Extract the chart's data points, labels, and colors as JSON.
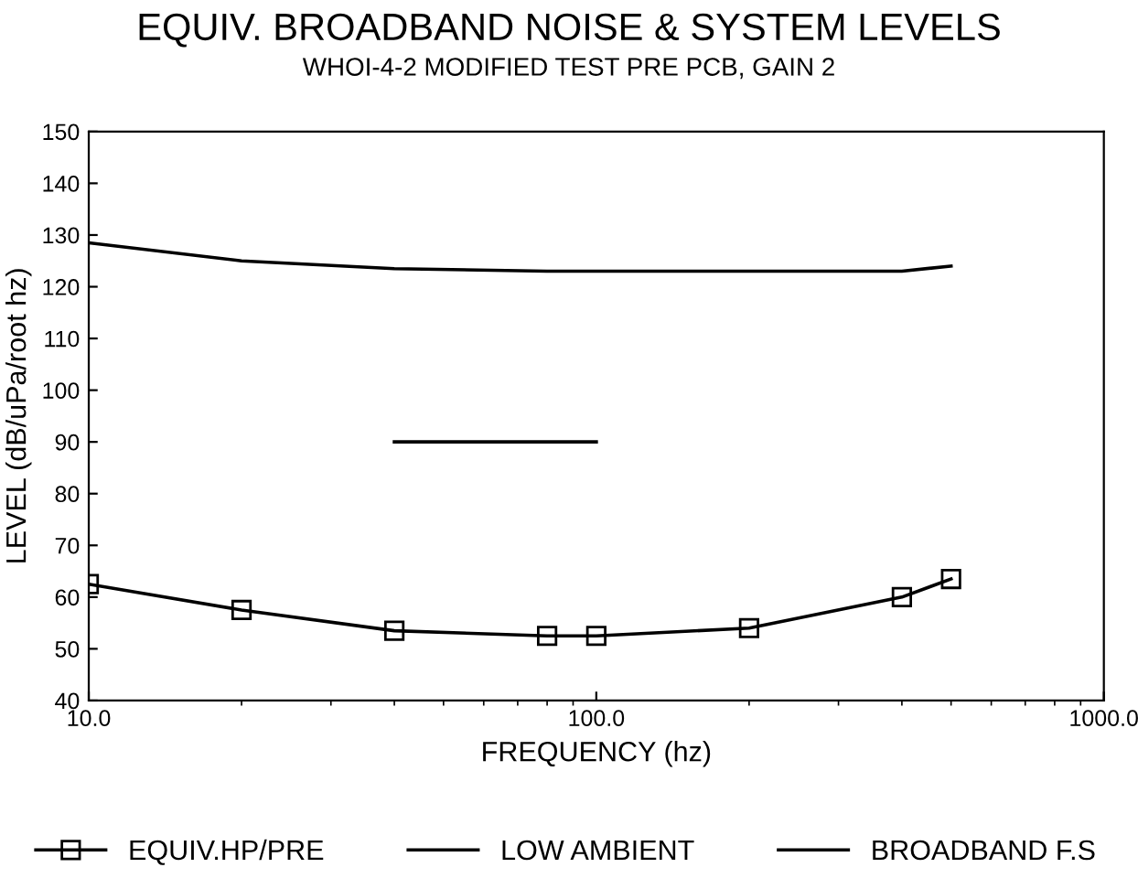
{
  "chart_data": {
    "type": "line",
    "title": "EQUIV. BROADBAND NOISE & SYSTEM LEVELS",
    "subtitle": "WHOI-4-2 MODIFIED TEST PRE PCB, GAIN 2",
    "xlabel": "FREQUENCY (hz)",
    "ylabel": "LEVEL (dB/uPa/root hz)",
    "log": "x",
    "xlim": [
      10,
      1000
    ],
    "xticks": [
      {
        "value": 10,
        "label": "10.0"
      },
      {
        "value": 100,
        "label": "100.0"
      },
      {
        "value": 1000,
        "label": "1000.0"
      }
    ],
    "ylim": [
      40,
      150
    ],
    "yticks": [
      40,
      50,
      60,
      70,
      80,
      90,
      100,
      110,
      120,
      130,
      140,
      150
    ],
    "grid": false,
    "legend": "bottom",
    "series": [
      {
        "name": "EQUIV.HP/PRE",
        "color": "#000000",
        "marker": "square",
        "x": [
          10,
          20,
          40,
          80,
          100,
          200,
          400,
          500
        ],
        "values": [
          62.5,
          57.5,
          53.5,
          52.5,
          52.5,
          54,
          60,
          63.5
        ]
      },
      {
        "name": "LOW AMBIENT",
        "color": "#000000",
        "marker": "none",
        "x": [
          40,
          100
        ],
        "values": [
          90,
          90
        ]
      },
      {
        "name": "BROADBAND F.S",
        "color": "#000000",
        "marker": "none",
        "x": [
          10,
          20,
          40,
          80,
          100,
          200,
          400,
          500
        ],
        "values": [
          128.5,
          125,
          123.5,
          123,
          123,
          123,
          123,
          124
        ]
      }
    ]
  }
}
